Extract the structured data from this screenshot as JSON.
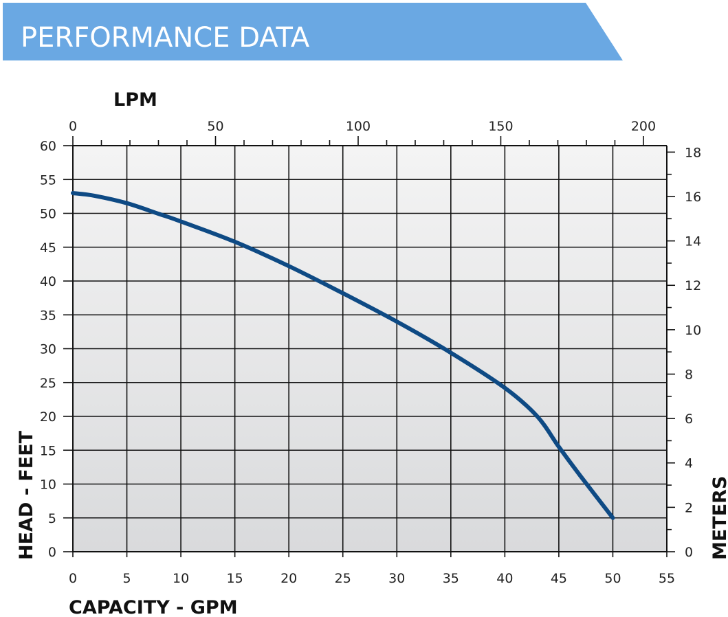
{
  "title": "PERFORMANCE DATA",
  "colors": {
    "banner": "#6aa8e3",
    "curve": "#0e4a84",
    "grid": "#111111",
    "plot_top": "#f4f4f4",
    "plot_bottom": "#d9dadc"
  },
  "chart_data": {
    "type": "line",
    "title": "PERFORMANCE DATA",
    "xlabel": "CAPACITY - GPM",
    "ylabel": "HEAD - FEET",
    "x2label": "LPM",
    "y2label": "METERS",
    "xlim": [
      0,
      55
    ],
    "ylim": [
      0,
      60
    ],
    "x2lim": [
      0,
      208.2
    ],
    "y2lim": [
      0,
      18.29
    ],
    "grid": true,
    "x_ticks": [
      "0",
      "5",
      "10",
      "15",
      "20",
      "25",
      "30",
      "35",
      "40",
      "45",
      "50",
      "55"
    ],
    "y_ticks": [
      "0",
      "5",
      "10",
      "15",
      "20",
      "25",
      "30",
      "35",
      "40",
      "45",
      "50",
      "55",
      "60"
    ],
    "x2_ticks": [
      "0",
      "50",
      "100",
      "150",
      "200"
    ],
    "y2_ticks": [
      "0",
      "2",
      "4",
      "6",
      "8",
      "10",
      "12",
      "14",
      "16",
      "18"
    ],
    "series": [
      {
        "x": [
          0,
          2,
          5,
          8,
          10,
          15,
          20,
          25,
          30,
          35,
          40,
          43,
          45,
          47,
          50
        ],
        "y": [
          53,
          52.6,
          51.5,
          49.9,
          48.8,
          45.8,
          42.2,
          38.2,
          34,
          29.4,
          24.2,
          20,
          15.5,
          11.2,
          5
        ]
      }
    ]
  }
}
